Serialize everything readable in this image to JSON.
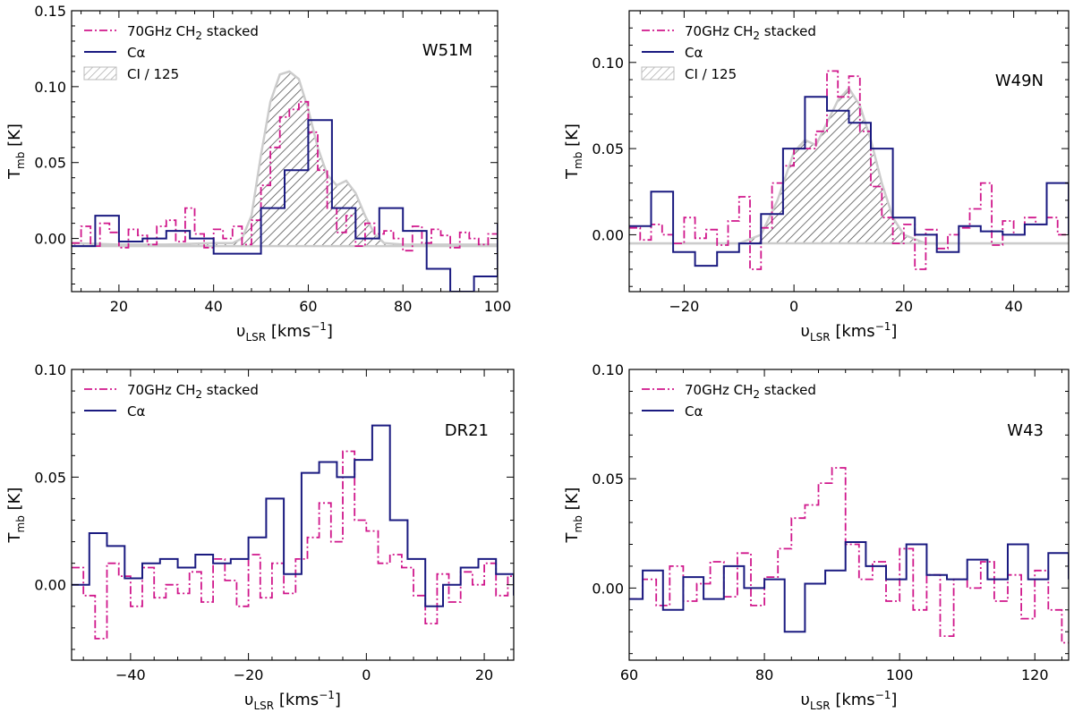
{
  "figure": {
    "legend": {
      "ch2_label": "70GHz CH",
      "ch2_subscript": "2",
      "ch2_suffix": " stacked",
      "calpha_label": "Cα",
      "ci_label": "CI / 125"
    },
    "xlabel": {
      "main": "υ",
      "sub": "LSR",
      "unit": "[kms",
      "unit_exp": "−1",
      "unit_close": "]"
    },
    "ylabel": {
      "main": "T",
      "sub": "mb",
      "unit": "[K]"
    },
    "colors": {
      "ch2": "#d0188c",
      "calpha": "#1a1a80",
      "ci_fill": "#666666",
      "ci_edge": "#cccccc"
    }
  },
  "chart_data": [
    {
      "type": "line",
      "name": "W51M",
      "title": "W51M",
      "xlim": [
        10,
        100
      ],
      "ylim": [
        -0.035,
        0.15
      ],
      "xticks": [
        20,
        40,
        60,
        80,
        100
      ],
      "yticks": [
        0.0,
        0.05,
        0.1,
        0.15
      ],
      "ytick_labels": [
        "0.00",
        "0.05",
        "0.10",
        "0.15"
      ],
      "has_ci": true,
      "series": [
        {
          "name": "Cα",
          "style": "step",
          "x": [
            10,
            15,
            20,
            25,
            30,
            35,
            40,
            45,
            50,
            55,
            60,
            65,
            70,
            75,
            80,
            85,
            90,
            95,
            100
          ],
          "y": [
            -0.005,
            0.015,
            -0.002,
            0.0,
            0.005,
            0.0,
            -0.01,
            -0.01,
            0.02,
            0.045,
            0.078,
            0.02,
            0.0,
            0.02,
            0.005,
            -0.02,
            -0.035,
            -0.025,
            0.01
          ]
        },
        {
          "name": "70GHz CH2 stacked",
          "style": "step-dashdot",
          "x": [
            10,
            12,
            14,
            16,
            18,
            20,
            22,
            24,
            26,
            28,
            30,
            32,
            34,
            36,
            38,
            40,
            42,
            44,
            46,
            48,
            50,
            52,
            54,
            56,
            58,
            60,
            62,
            64,
            66,
            68,
            70,
            72,
            74,
            76,
            78,
            80,
            82,
            84,
            86,
            88,
            90,
            92,
            94,
            96,
            98,
            100
          ],
          "y": [
            -0.003,
            0.008,
            -0.005,
            0.01,
            0.004,
            -0.006,
            0.006,
            0.002,
            -0.004,
            0.008,
            0.012,
            -0.002,
            0.02,
            0.003,
            -0.006,
            0.006,
            0.0,
            0.008,
            -0.004,
            0.012,
            0.035,
            0.06,
            0.08,
            0.085,
            0.09,
            0.07,
            0.045,
            0.02,
            0.004,
            0.015,
            -0.005,
            0.01,
            0.003,
            0.005,
            0.0,
            -0.008,
            0.008,
            -0.003,
            0.006,
            0.002,
            -0.006,
            0.004,
            0.0,
            -0.004,
            0.003,
            0.0
          ]
        },
        {
          "name": "CI / 125",
          "style": "hatched-area",
          "x": [
            10,
            20,
            30,
            40,
            44,
            46,
            48,
            50,
            52,
            54,
            56,
            58,
            60,
            62,
            64,
            66,
            68,
            70,
            72,
            74,
            76,
            80,
            90,
            100
          ],
          "y": [
            -0.003,
            -0.004,
            -0.004,
            -0.003,
            -0.003,
            0.0,
            0.015,
            0.055,
            0.09,
            0.108,
            0.11,
            0.105,
            0.085,
            0.06,
            0.042,
            0.035,
            0.038,
            0.03,
            0.015,
            0.003,
            -0.003,
            -0.004,
            -0.004,
            -0.004
          ]
        }
      ]
    },
    {
      "type": "line",
      "name": "W49N",
      "title": "W49N",
      "xlim": [
        -30,
        50
      ],
      "ylim": [
        -0.033,
        0.13
      ],
      "xticks": [
        -20,
        0,
        20,
        40
      ],
      "yticks": [
        0.0,
        0.05,
        0.1
      ],
      "ytick_labels": [
        "0.00",
        "0.05",
        "0.10"
      ],
      "has_ci": true,
      "series": [
        {
          "name": "Cα",
          "style": "step",
          "x": [
            -30,
            -26,
            -22,
            -18,
            -14,
            -10,
            -6,
            -2,
            2,
            6,
            10,
            14,
            18,
            22,
            26,
            30,
            34,
            38,
            42,
            46,
            50
          ],
          "y": [
            0.005,
            0.025,
            -0.01,
            -0.018,
            -0.01,
            -0.005,
            0.012,
            0.05,
            0.08,
            0.072,
            0.065,
            0.05,
            0.01,
            0.0,
            -0.01,
            0.005,
            0.002,
            0.0,
            0.006,
            0.03,
            0.0
          ]
        },
        {
          "name": "70GHz CH2 stacked",
          "style": "step-dashdot",
          "x": [
            -30,
            -28,
            -26,
            -24,
            -22,
            -20,
            -18,
            -16,
            -14,
            -12,
            -10,
            -8,
            -6,
            -4,
            -2,
            0,
            2,
            4,
            6,
            8,
            10,
            12,
            14,
            16,
            18,
            20,
            22,
            24,
            26,
            28,
            30,
            32,
            34,
            36,
            38,
            40,
            42,
            44,
            46,
            48,
            50
          ],
          "y": [
            0.004,
            -0.003,
            0.006,
            0.0,
            -0.005,
            0.01,
            -0.002,
            0.003,
            -0.006,
            0.008,
            0.022,
            -0.02,
            0.004,
            0.03,
            0.04,
            0.05,
            0.05,
            0.06,
            0.095,
            0.08,
            0.092,
            0.06,
            0.028,
            0.01,
            -0.005,
            0.006,
            -0.02,
            0.003,
            -0.008,
            0.0,
            0.004,
            0.015,
            0.03,
            -0.006,
            0.008,
            0.0,
            0.01,
            0.006,
            0.01,
            0.0,
            0.005
          ]
        },
        {
          "name": "CI / 125",
          "style": "hatched-area",
          "x": [
            -30,
            -20,
            -10,
            -6,
            -3,
            0,
            2,
            4,
            6,
            8,
            10,
            12,
            14,
            16,
            18,
            20,
            24,
            30,
            40,
            50
          ],
          "y": [
            -0.005,
            -0.005,
            -0.005,
            0.0,
            0.02,
            0.048,
            0.055,
            0.052,
            0.065,
            0.078,
            0.085,
            0.075,
            0.055,
            0.03,
            0.01,
            0.0,
            -0.005,
            -0.005,
            -0.005,
            -0.005
          ]
        }
      ]
    },
    {
      "type": "line",
      "name": "DR21",
      "title": "DR21",
      "xlim": [
        -50,
        25
      ],
      "ylim": [
        -0.035,
        0.1
      ],
      "xticks": [
        -40,
        -20,
        0,
        20
      ],
      "yticks": [
        0.0,
        0.05,
        0.1
      ],
      "ytick_labels": [
        "0.00",
        "0.05",
        "0.10"
      ],
      "has_ci": false,
      "series": [
        {
          "name": "Cα",
          "style": "step",
          "x": [
            -50,
            -47,
            -44,
            -41,
            -38,
            -35,
            -32,
            -29,
            -26,
            -23,
            -20,
            -17,
            -14,
            -11,
            -8,
            -5,
            -2,
            1,
            4,
            7,
            10,
            13,
            16,
            19,
            22,
            25
          ],
          "y": [
            0.0,
            0.024,
            0.018,
            0.003,
            0.01,
            0.012,
            0.008,
            0.014,
            0.01,
            0.012,
            0.022,
            0.04,
            0.005,
            0.052,
            0.057,
            0.05,
            0.058,
            0.074,
            0.03,
            0.012,
            -0.01,
            0.0,
            0.008,
            0.012,
            0.005,
            -0.005
          ]
        },
        {
          "name": "70GHz CH2 stacked",
          "style": "step-dashdot",
          "x": [
            -50,
            -48,
            -46,
            -44,
            -42,
            -40,
            -38,
            -36,
            -34,
            -32,
            -30,
            -28,
            -26,
            -24,
            -22,
            -20,
            -18,
            -16,
            -14,
            -12,
            -10,
            -8,
            -6,
            -4,
            -2,
            0,
            2,
            4,
            6,
            8,
            10,
            12,
            14,
            16,
            18,
            20,
            22,
            24
          ],
          "y": [
            0.008,
            -0.005,
            -0.025,
            0.01,
            0.004,
            -0.01,
            0.008,
            -0.006,
            0.0,
            -0.004,
            0.006,
            -0.008,
            0.012,
            0.002,
            -0.01,
            0.014,
            -0.006,
            0.01,
            -0.004,
            0.012,
            0.022,
            0.038,
            0.02,
            0.062,
            0.03,
            0.025,
            0.01,
            0.014,
            0.008,
            -0.005,
            -0.018,
            0.005,
            -0.008,
            0.006,
            0.0,
            0.01,
            -0.005,
            0.004
          ]
        }
      ]
    },
    {
      "type": "line",
      "name": "W43",
      "title": "W43",
      "xlim": [
        60,
        125
      ],
      "ylim": [
        -0.033,
        0.1
      ],
      "xticks": [
        60,
        80,
        100,
        120
      ],
      "yticks": [
        0.0,
        0.05,
        0.1
      ],
      "ytick_labels": [
        "0.00",
        "0.05",
        "0.10"
      ],
      "has_ci": false,
      "series": [
        {
          "name": "Cα",
          "style": "step",
          "x": [
            60,
            62,
            65,
            68,
            71,
            74,
            77,
            80,
            83,
            86,
            89,
            92,
            95,
            98,
            101,
            104,
            107,
            110,
            113,
            116,
            119,
            122,
            125
          ],
          "y": [
            -0.005,
            0.008,
            -0.01,
            0.005,
            -0.005,
            0.01,
            0.0,
            0.004,
            -0.02,
            0.002,
            0.008,
            0.021,
            0.01,
            0.004,
            0.02,
            0.006,
            0.004,
            0.013,
            0.004,
            0.02,
            0.004,
            0.016,
            0.004
          ]
        },
        {
          "name": "70GHz CH2 stacked",
          "style": "step-dashdot",
          "x": [
            60,
            62,
            64,
            66,
            68,
            70,
            72,
            74,
            76,
            78,
            80,
            82,
            84,
            86,
            88,
            90,
            92,
            94,
            96,
            98,
            100,
            102,
            104,
            106,
            108,
            110,
            112,
            114,
            116,
            118,
            120,
            122,
            124
          ],
          "y": [
            -0.005,
            0.004,
            -0.008,
            0.01,
            -0.006,
            0.002,
            0.012,
            -0.004,
            0.016,
            -0.008,
            0.005,
            0.018,
            0.032,
            0.038,
            0.048,
            0.055,
            0.02,
            0.004,
            0.012,
            -0.006,
            0.018,
            -0.01,
            0.006,
            -0.022,
            0.004,
            0.0,
            0.012,
            -0.006,
            0.006,
            -0.014,
            0.008,
            -0.01,
            -0.025
          ]
        }
      ]
    }
  ]
}
